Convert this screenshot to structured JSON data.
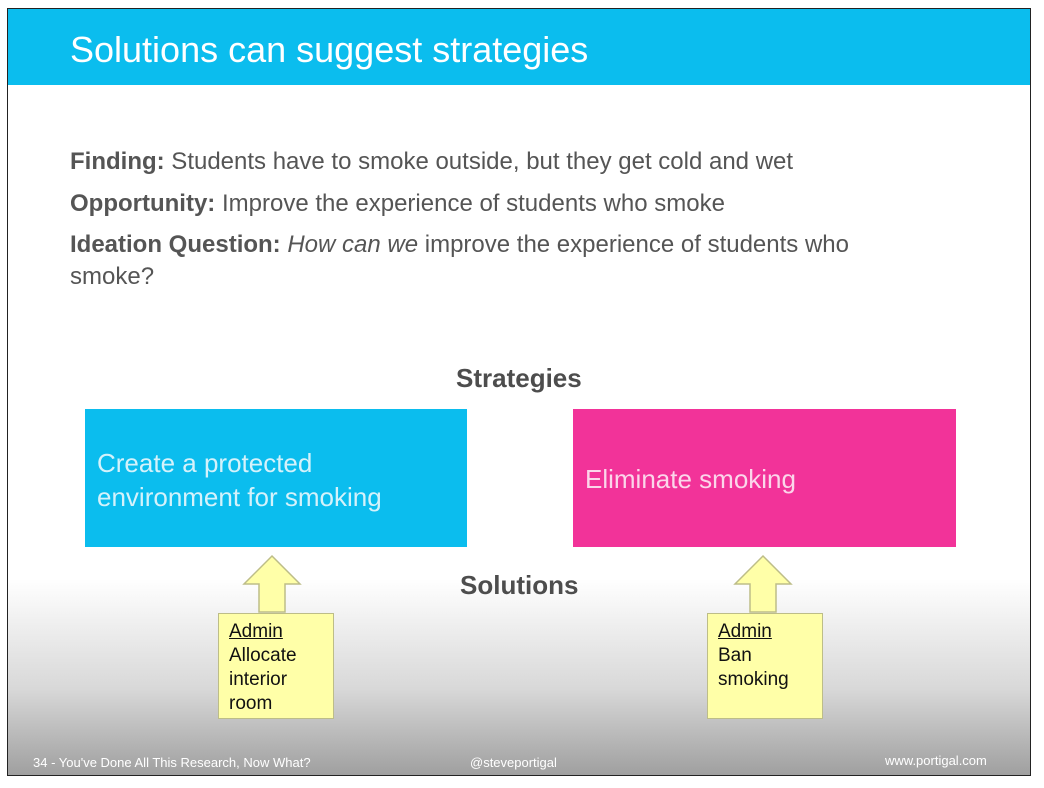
{
  "title": "Solutions can suggest strategies",
  "finding": {
    "label": "Finding:",
    "text": " Students have to smoke outside, but they get cold and wet"
  },
  "opportunity": {
    "label": "Opportunity:",
    "text": " Improve the experience of students who smoke"
  },
  "ideation": {
    "label": "Ideation Question:",
    "italic": "How can we",
    "text": " improve the experience of students who",
    "text2": "smoke?"
  },
  "strategies_heading": "Strategies",
  "solutions_heading": "Solutions",
  "strategies": [
    {
      "line1": "Create a protected",
      "line2": "environment for smoking",
      "color": "#0bbdee"
    },
    {
      "line1": "Eliminate smoking",
      "color": "#f23399"
    }
  ],
  "notes": [
    {
      "head": "Admin",
      "lines": [
        "Allocate",
        "interior",
        "room"
      ]
    },
    {
      "head": "Admin",
      "lines": [
        "Ban",
        "smoking"
      ]
    }
  ],
  "footer": {
    "left": "34 - You've Done All This Research, Now What?",
    "middle": "@steveportigal",
    "right": "www.portigal.com"
  }
}
